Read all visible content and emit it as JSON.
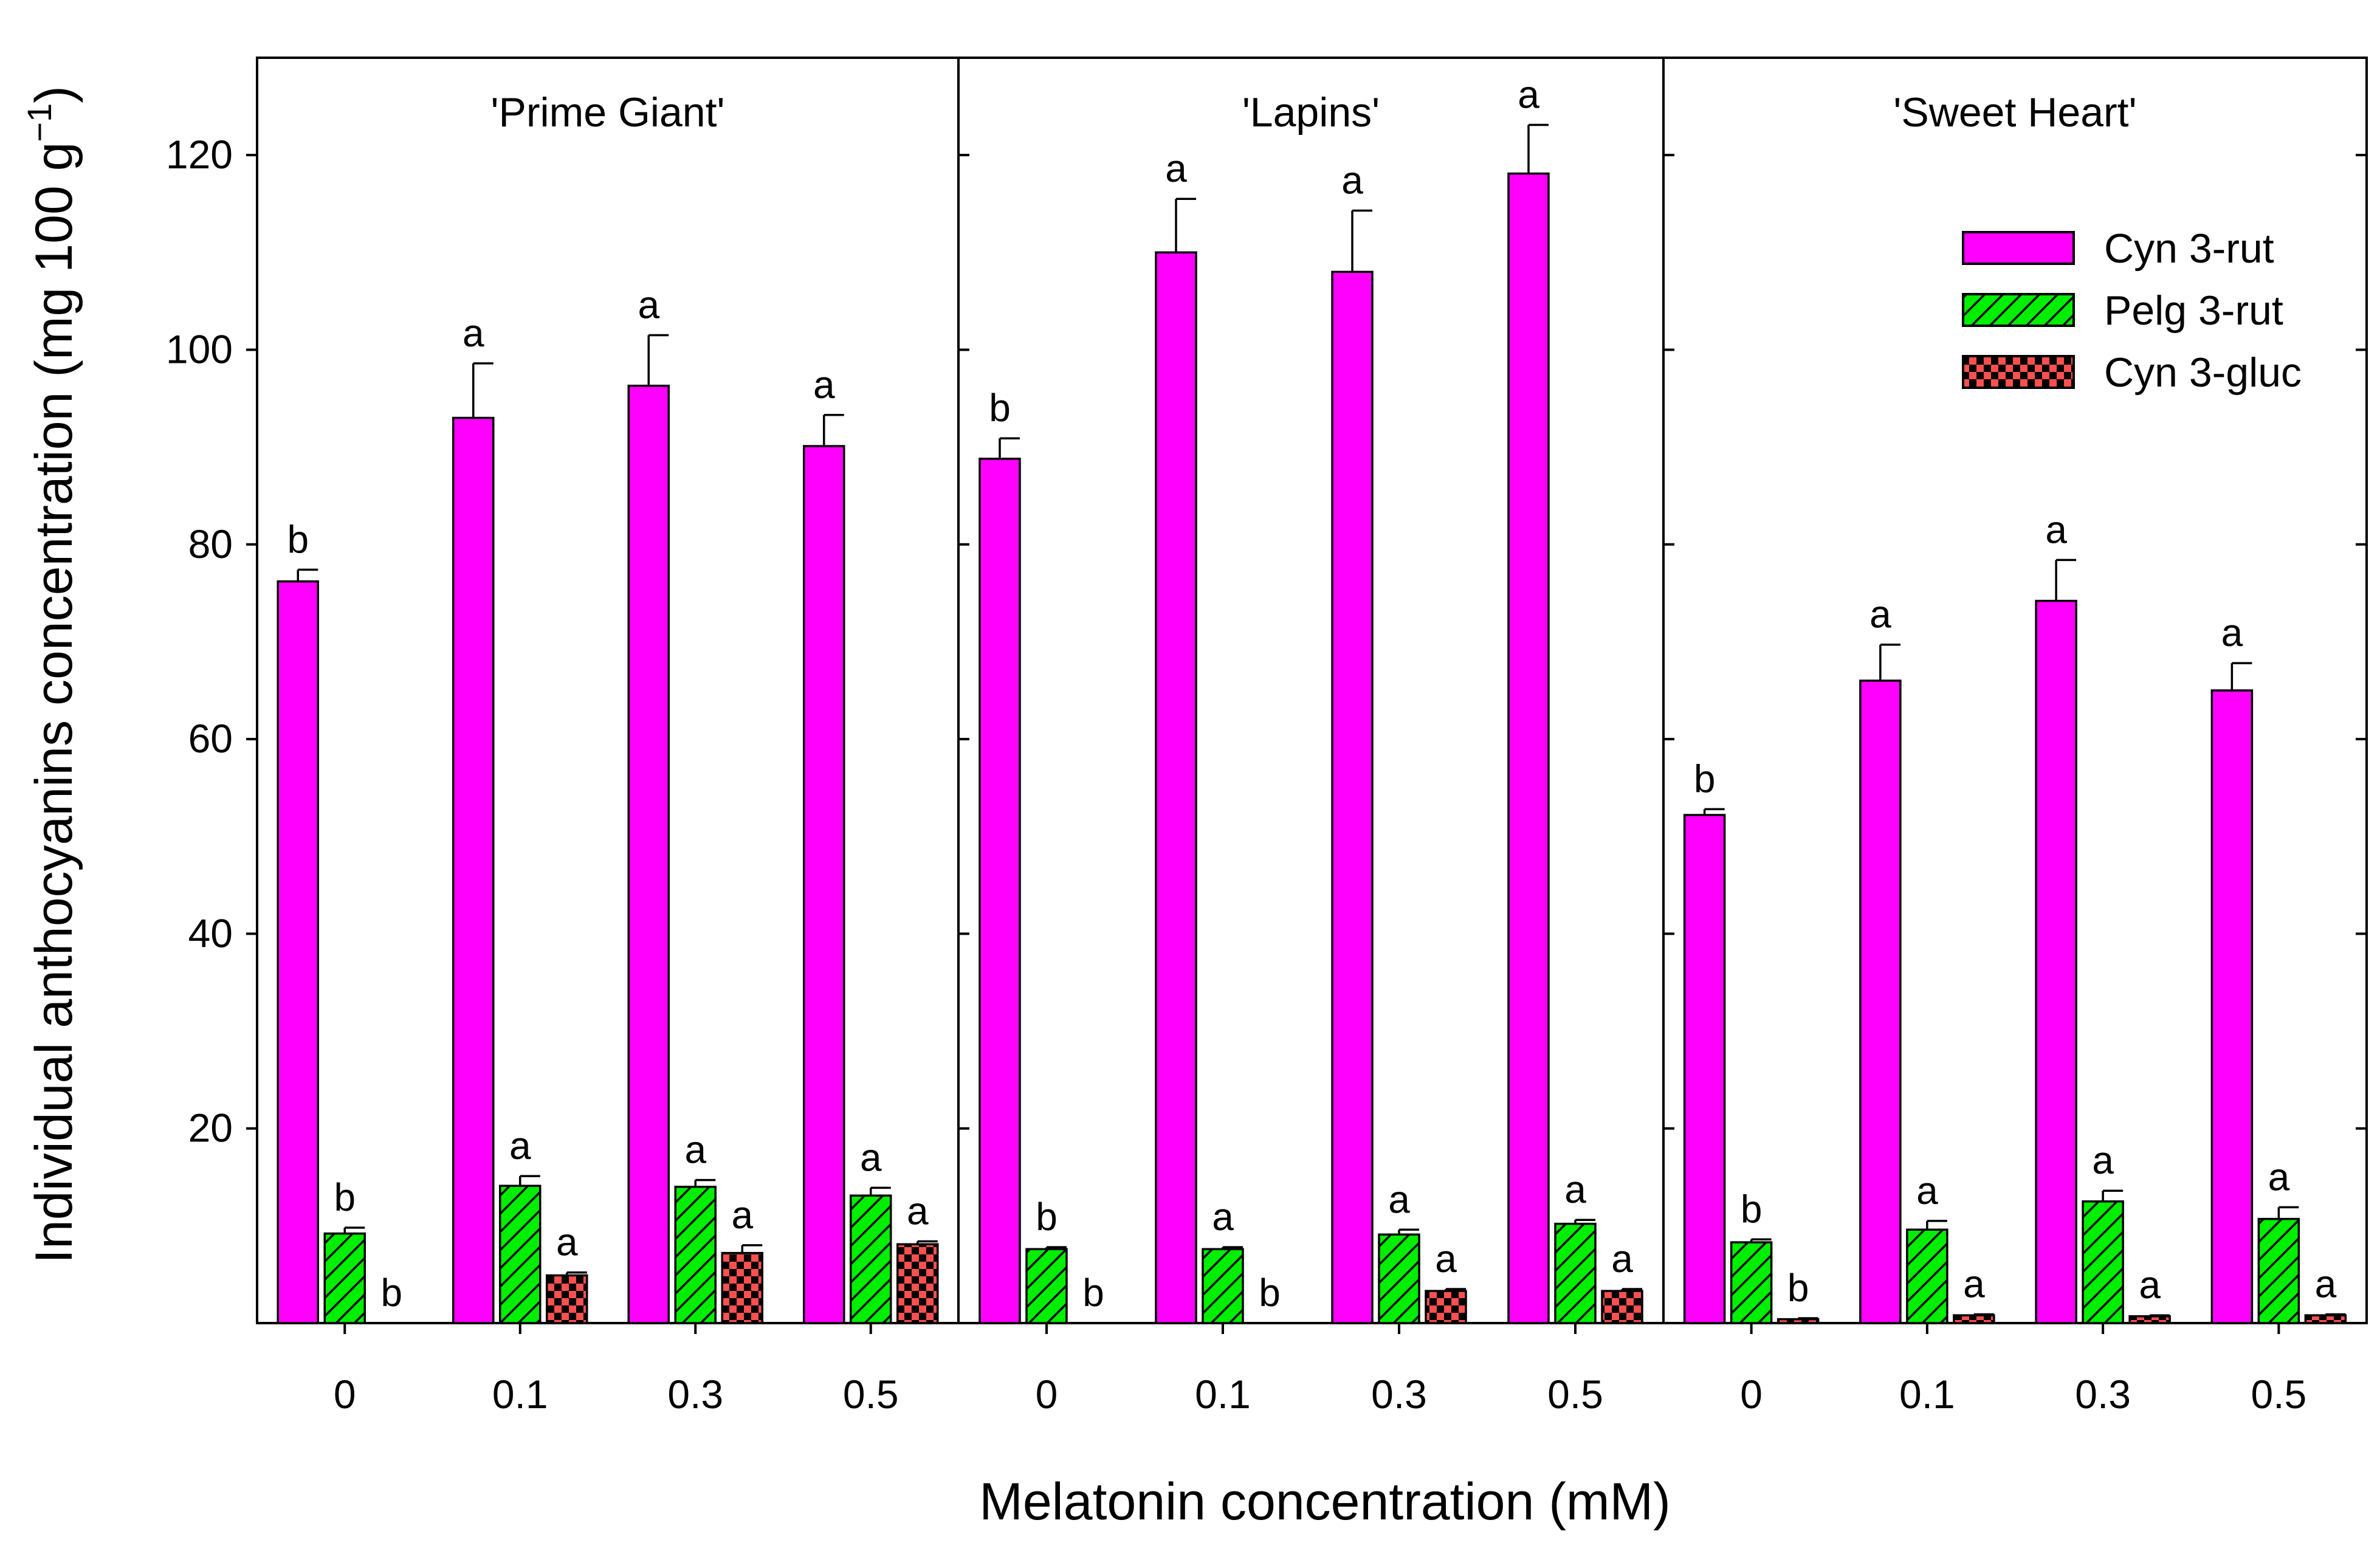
{
  "chart_data": {
    "type": "bar",
    "xlabel": "Melatonin concentration (mM)",
    "ylabel": {
      "main": "Individual anthocyanins concentration (mg 100 g",
      "superscript": "−1",
      "suffix": ")"
    },
    "ylim": [
      0,
      130
    ],
    "yticks": [
      20,
      40,
      60,
      80,
      100,
      120
    ],
    "grid": false,
    "legend_position": "top-right",
    "categories": [
      "0",
      "0.1",
      "0.3",
      "0.5"
    ],
    "series": [
      {
        "name": "Cyn 3-rut",
        "color": "#ff00ff",
        "pattern": "solid"
      },
      {
        "name": "Pelg 3-rut",
        "color": "#00ee00",
        "pattern": "hatch"
      },
      {
        "name": "Cyn 3-gluc",
        "color": "#ff5050",
        "pattern": "checker"
      }
    ],
    "panels": [
      {
        "title": "'Prime Giant'",
        "values": [
          [
            76.2,
            93.0,
            96.3,
            90.1
          ],
          [
            9.2,
            14.1,
            14.0,
            13.1
          ],
          [
            0,
            4.9,
            7.2,
            8.1
          ]
        ],
        "errors": [
          [
            1.2,
            5.6,
            5.2,
            3.2
          ],
          [
            0.6,
            1.0,
            0.7,
            0.8
          ],
          [
            0,
            0.3,
            0.8,
            0.3
          ]
        ],
        "labels": [
          [
            "b",
            "a",
            "a",
            "a"
          ],
          [
            "b",
            "a",
            "a",
            "a"
          ],
          [
            "b",
            "a",
            "a",
            "a"
          ]
        ]
      },
      {
        "title": "'Lapins'",
        "values": [
          [
            88.8,
            110.0,
            108.0,
            118.1
          ],
          [
            7.6,
            7.6,
            9.1,
            10.2
          ],
          [
            0,
            0,
            3.3,
            3.3
          ]
        ],
        "errors": [
          [
            2.1,
            5.5,
            6.3,
            5.0
          ],
          [
            0.2,
            0.2,
            0.5,
            0.4
          ],
          [
            0,
            0,
            0.2,
            0.2
          ]
        ],
        "labels": [
          [
            "b",
            "a",
            "a",
            "a"
          ],
          [
            "b",
            "a",
            "a",
            "a"
          ],
          [
            "b",
            "b",
            "a",
            "a"
          ]
        ]
      },
      {
        "title": "'Sweet Heart'",
        "values": [
          [
            52.2,
            66.0,
            74.2,
            65.0
          ],
          [
            8.3,
            9.6,
            12.5,
            10.7
          ],
          [
            0.4,
            0.8,
            0.7,
            0.8
          ]
        ],
        "errors": [
          [
            0.6,
            3.7,
            4.2,
            2.8
          ],
          [
            0.3,
            0.9,
            1.1,
            1.2
          ],
          [
            0.1,
            0.1,
            0.1,
            0.1
          ]
        ],
        "labels": [
          [
            "b",
            "a",
            "a",
            "a"
          ],
          [
            "b",
            "a",
            "a",
            "a"
          ],
          [
            "b",
            "a",
            "a",
            "a"
          ]
        ]
      }
    ]
  }
}
